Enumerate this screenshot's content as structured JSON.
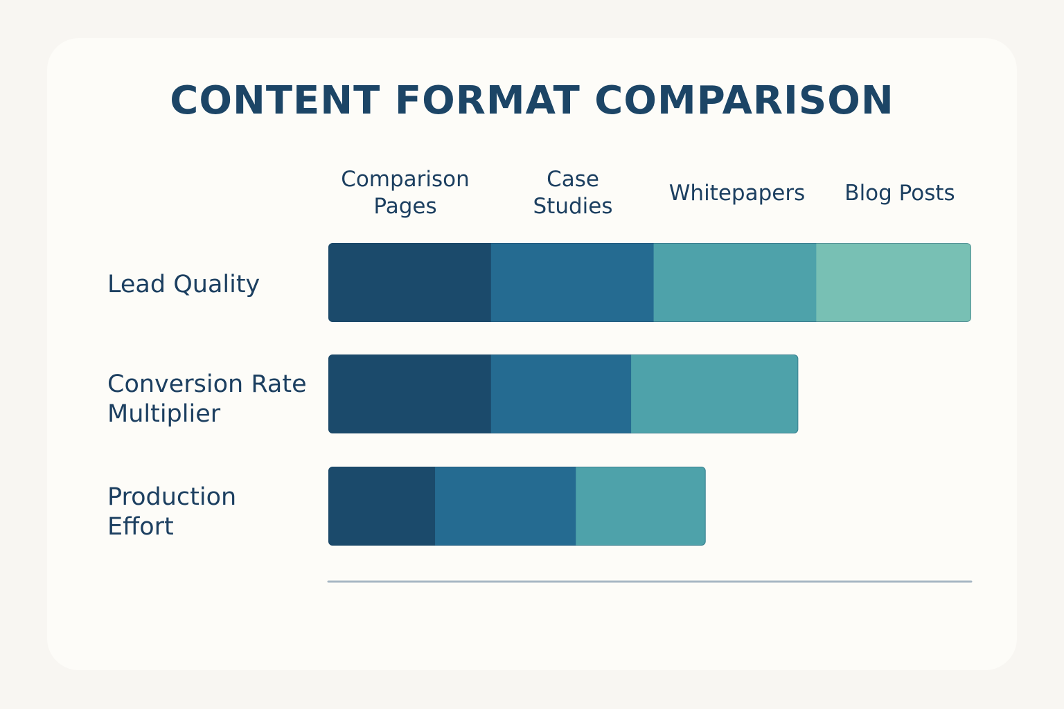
{
  "chart_data": {
    "type": "bar",
    "orientation": "horizontal",
    "stacked": true,
    "title": "CONTENT FORMAT COMPARISON",
    "categories": [
      "Lead Quality",
      "Conversion Rate\nMultiplier",
      "Production\nEffort"
    ],
    "series": [
      {
        "name": "Comparison\nPages",
        "color": "#1b4a6b",
        "values": [
          25.3,
          25.3,
          16.6
        ]
      },
      {
        "name": "Case\nStudies",
        "color": "#256b91",
        "values": [
          25.3,
          21.8,
          21.9
        ]
      },
      {
        "name": "Whitepapers",
        "color": "#4ea2aa",
        "values": [
          25.3,
          26.0,
          20.2
        ]
      },
      {
        "name": "Blog Posts",
        "color": "#78c0b4",
        "values": [
          24.1,
          0,
          0
        ]
      }
    ],
    "xlim": [
      0,
      100
    ],
    "grid": false,
    "legend_placement": "top"
  }
}
